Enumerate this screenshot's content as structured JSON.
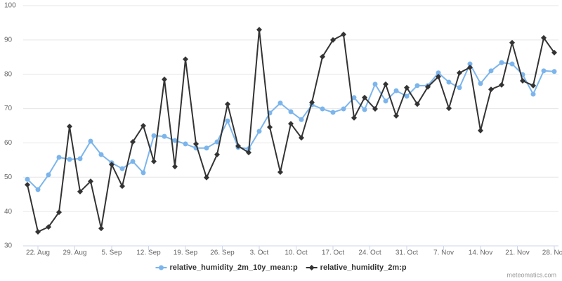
{
  "chart_data": {
    "type": "line",
    "x": [
      "08-20",
      "08-22",
      "08-24",
      "08-26",
      "08-28",
      "08-30",
      "09-01",
      "09-03",
      "09-05",
      "09-07",
      "09-09",
      "09-11",
      "09-13",
      "09-15",
      "09-17",
      "09-19",
      "09-21",
      "09-23",
      "09-25",
      "09-27",
      "09-29",
      "10-01",
      "10-03",
      "10-05",
      "10-07",
      "10-09",
      "10-11",
      "10-13",
      "10-15",
      "10-17",
      "10-19",
      "10-21",
      "10-23",
      "10-25",
      "10-27",
      "10-29",
      "10-31",
      "11-02",
      "11-04",
      "11-06",
      "11-08",
      "11-10",
      "11-12",
      "11-14",
      "11-16",
      "11-18",
      "11-20",
      "11-22",
      "11-24",
      "11-26",
      "11-28"
    ],
    "xlim": [
      "08-20",
      "11-28"
    ],
    "xticks": [
      {
        "value": "08-22",
        "label": "22. Aug"
      },
      {
        "value": "08-29",
        "label": "29. Aug"
      },
      {
        "value": "09-05",
        "label": "5. Sep"
      },
      {
        "value": "09-12",
        "label": "12. Sep"
      },
      {
        "value": "09-19",
        "label": "19. Sep"
      },
      {
        "value": "09-26",
        "label": "26. Sep"
      },
      {
        "value": "10-03",
        "label": "3. Oct"
      },
      {
        "value": "10-10",
        "label": "10. Oct"
      },
      {
        "value": "10-17",
        "label": "17. Oct"
      },
      {
        "value": "10-24",
        "label": "24. Oct"
      },
      {
        "value": "10-31",
        "label": "31. Oct"
      },
      {
        "value": "11-07",
        "label": "7. Nov"
      },
      {
        "value": "11-14",
        "label": "14. Nov"
      },
      {
        "value": "11-21",
        "label": "21. Nov"
      },
      {
        "value": "11-28",
        "label": "28. Nov"
      }
    ],
    "ylim": [
      30,
      100
    ],
    "yticks": [
      30,
      40,
      50,
      60,
      70,
      80,
      90,
      100
    ],
    "grid": true,
    "legend": "bottom",
    "series": [
      {
        "name": "relative_humidity_2m_10y_mean:p",
        "color": "#7cb5ec",
        "marker": "circle",
        "values": [
          49.4,
          46.4,
          50.7,
          55.8,
          55.2,
          55.4,
          60.5,
          56.6,
          54.2,
          52.5,
          54.6,
          51.3,
          62.1,
          61.9,
          60.7,
          59.7,
          58.5,
          58.5,
          60.3,
          66.4,
          58.7,
          58.3,
          63.4,
          68.7,
          71.6,
          69.1,
          66.8,
          71.1,
          69.9,
          68.9,
          69.9,
          73.2,
          69.7,
          77.1,
          72.2,
          75.2,
          73.6,
          76.7,
          76.7,
          80.4,
          77.7,
          76.1,
          83.0,
          77.3,
          81.0,
          83.4,
          83.0,
          79.9,
          74.2,
          81.0,
          80.8
        ]
      },
      {
        "name": "relative_humidity_2m:p",
        "color": "#333333",
        "marker": "diamond",
        "values": [
          47.8,
          34.1,
          35.5,
          39.8,
          64.8,
          45.8,
          48.8,
          35.1,
          53.7,
          47.4,
          60.3,
          65.0,
          54.6,
          78.5,
          53.1,
          84.4,
          59.7,
          49.9,
          56.6,
          71.3,
          59.1,
          57.2,
          93.0,
          64.6,
          51.5,
          65.6,
          61.5,
          71.8,
          85.1,
          90.0,
          91.6,
          67.3,
          73.2,
          69.9,
          77.1,
          67.9,
          76.1,
          71.3,
          76.3,
          79.3,
          70.1,
          80.4,
          82.0,
          63.6,
          75.6,
          76.9,
          89.2,
          78.1,
          76.7,
          90.6,
          86.3
        ]
      }
    ],
    "credit": "meteomatics.com"
  }
}
